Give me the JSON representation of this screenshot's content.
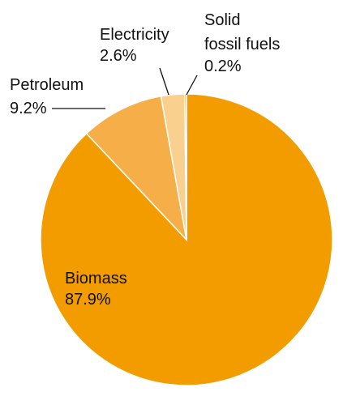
{
  "chart_data": {
    "type": "pie",
    "title": "",
    "slices": [
      {
        "label": "Biomass",
        "value": 87.9,
        "value_label": "87.9%",
        "color": "#F39C00"
      },
      {
        "label": "Petroleum",
        "value": 9.2,
        "value_label": "9.2%",
        "color": "#F6AE48"
      },
      {
        "label": "Electricity",
        "value": 2.6,
        "value_label": "2.6%",
        "color": "#FAD08E"
      },
      {
        "label_lines": [
          "Solid",
          "fossil fuels"
        ],
        "value": 0.2,
        "value_label": "0.2%",
        "color": "#E89400"
      }
    ]
  }
}
